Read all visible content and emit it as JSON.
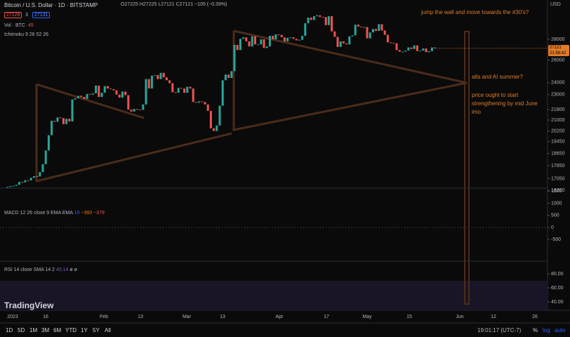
{
  "header": {
    "title": "Bitcoin / U.S. Dollar · 1D · BITSTAMP",
    "ohlc": "O27225 H27225 L27121 C27121 −105 (−0.39%)",
    "bid": "27128",
    "spread": "3",
    "ask": "27131",
    "volume_label": "Vol · BTC",
    "volume_value": "45",
    "ichimoku": "Ichimoku 9 26 52 26"
  },
  "annotations": [
    "jump the wall and move towards the #30's?",
    "alts and AI summer?",
    "price ought to start strengthening by mid June imo"
  ],
  "price_axis": {
    "unit": "USD",
    "ticks": [
      28000,
      26000,
      24000,
      23000,
      21800,
      21000,
      20200,
      19450,
      18650,
      17850,
      17050,
      16350
    ],
    "last_price": 27121,
    "countdown": "21:58:42"
  },
  "price": {
    "closes": [
      16550,
      16600,
      16620,
      16680,
      16850,
      16830,
      16950,
      16940,
      17100,
      17200,
      17180,
      17450,
      17950,
      18850,
      19900,
      20950,
      20880,
      21200,
      21150,
      20700,
      21100,
      20900,
      22600,
      22700,
      22900,
      22800,
      22650,
      23050,
      23000,
      23100,
      23750,
      22800,
      23150,
      23700,
      23500,
      23450,
      23350,
      23000,
      22750,
      23250,
      22950,
      21800,
      21650,
      21850,
      21800,
      21780,
      22200,
      24300,
      23500,
      24600,
      24650,
      24300,
      24850,
      24450,
      24200,
      23950,
      23200,
      23150,
      23550,
      23500,
      23150,
      23650,
      23500,
      22400,
      22350,
      22450,
      22400,
      22200,
      21700,
      20400,
      20200,
      20600,
      22100,
      24200,
      24700,
      24400,
      25000,
      27450,
      26950,
      28050,
      28200,
      27800,
      27300,
      28300,
      27500,
      27500,
      28000,
      27150,
      27300,
      28350,
      28000,
      28500,
      28450,
      28200,
      27800,
      28150,
      28200,
      28050,
      27900,
      27950,
      28350,
      29650,
      30250,
      30000,
      30400,
      30500,
      30320,
      30300,
      29450,
      30400,
      28800,
      28250,
      27250,
      27800,
      27600,
      27500,
      28300,
      28400,
      29500,
      29300,
      29250,
      29250,
      28100,
      28700,
      29050,
      28850,
      29550,
      28900,
      28450,
      27700,
      27650,
      27600,
      26950,
      26800,
      26800,
      26900,
      27200,
      27050,
      27400,
      26850,
      26900,
      27100,
      26750,
      26850,
      27200,
      27121
    ]
  },
  "macd": {
    "label": "MACD 12 26 close 9 EMA EMA",
    "values": [
      "19",
      "−360",
      "−379"
    ],
    "ticks": [
      1500,
      1000,
      500,
      0,
      -500
    ]
  },
  "rsi": {
    "label": "RSI 14 close SMA 14 2",
    "values": [
      "45.14",
      "ø",
      "ø"
    ],
    "ticks": [
      {
        "value": 80,
        "label": "80.00"
      },
      {
        "value": 60,
        "label": "60.00"
      },
      {
        "value": 40,
        "label": "40.00"
      }
    ]
  },
  "time_axis": [
    "2023",
    "16",
    "Feb",
    "13",
    "Mar",
    "13",
    "Apr",
    "17",
    "May",
    "15",
    "Jun",
    "12",
    "26"
  ],
  "logo": "TradingView",
  "toolbar": {
    "ranges": [
      "1D",
      "5D",
      "1M",
      "3M",
      "6M",
      "YTD",
      "1Y",
      "5Y",
      "All"
    ],
    "clock": "19:01:17 (UTC-7)",
    "percent": "%",
    "log": "log",
    "auto": "auto"
  }
}
